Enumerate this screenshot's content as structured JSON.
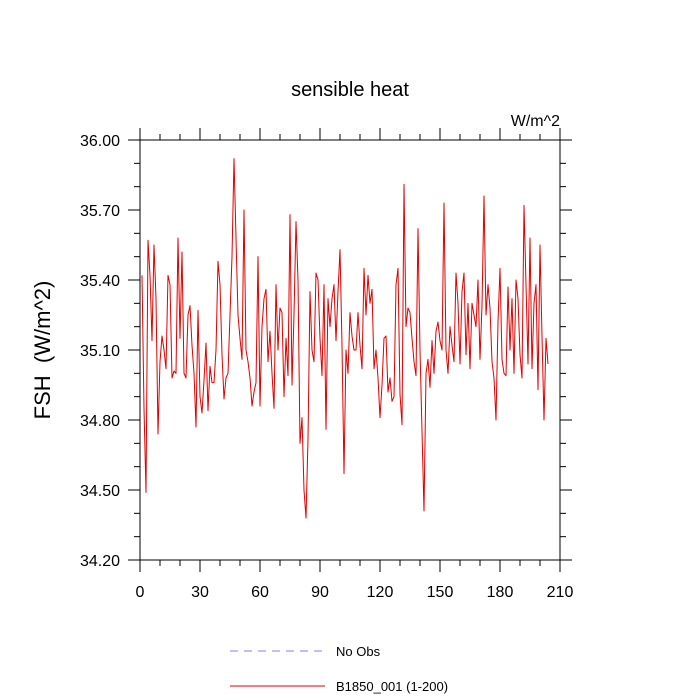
{
  "chart_data": {
    "type": "line",
    "title": "sensible heat",
    "units_label": "W/m^2",
    "ylabel": "FSH  (W/m^2)",
    "xlabel": "",
    "xlim": [
      0,
      210
    ],
    "ylim": [
      34.2,
      36.0
    ],
    "x_ticks": [
      0,
      30,
      60,
      90,
      120,
      150,
      180,
      210
    ],
    "y_ticks": [
      34.2,
      34.5,
      34.8,
      35.1,
      35.4,
      35.7,
      36.0
    ],
    "y_tick_labels": [
      "34.20",
      "34.50",
      "34.80",
      "35.10",
      "35.40",
      "35.70",
      "36.00"
    ],
    "grid": false,
    "legend_position": "bottom",
    "series": [
      {
        "name": "No Obs",
        "color": "#8080ff",
        "dash": true,
        "values": []
      },
      {
        "name": "B1850_001 (1-200)",
        "color": "#e00000",
        "dash": false,
        "x_start": 1,
        "values": [
          35.42,
          34.85,
          34.49,
          35.57,
          35.42,
          35.14,
          35.55,
          35.32,
          34.74,
          35.05,
          35.16,
          35.1,
          35.02,
          35.42,
          35.38,
          34.98,
          35.01,
          35.0,
          35.58,
          35.15,
          35.52,
          35.0,
          34.98,
          35.25,
          35.29,
          35.12,
          35.0,
          34.77,
          35.27,
          34.9,
          34.83,
          34.97,
          35.13,
          34.84,
          35.03,
          34.96,
          34.96,
          35.1,
          35.48,
          35.38,
          35.08,
          34.89,
          34.98,
          35.0,
          35.25,
          35.5,
          35.92,
          35.58,
          35.25,
          35.15,
          35.06,
          35.7,
          35.1,
          35.05,
          34.98,
          34.86,
          34.92,
          34.96,
          35.5,
          34.86,
          35.2,
          35.32,
          35.36,
          35.05,
          35.18,
          35.0,
          34.85,
          35.38,
          35.1,
          35.28,
          35.26,
          34.9,
          35.15,
          34.99,
          35.68,
          34.95,
          35.25,
          35.65,
          35.4,
          34.7,
          34.81,
          34.5,
          34.38,
          34.72,
          35.35,
          35.1,
          35.05,
          35.43,
          35.4,
          35.15,
          34.99,
          35.38,
          34.76,
          35.32,
          35.2,
          35.32,
          35.38,
          35.14,
          35.35,
          35.53,
          35.12,
          34.57,
          35.1,
          35.0,
          35.26,
          35.16,
          35.1,
          35.1,
          35.26,
          35.12,
          35.02,
          35.45,
          35.25,
          35.42,
          35.3,
          35.36,
          35.02,
          35.1,
          34.98,
          34.81,
          34.95,
          35.15,
          35.16,
          34.92,
          34.98,
          34.88,
          34.9,
          35.38,
          35.45,
          34.91,
          34.78,
          35.81,
          35.2,
          35.28,
          35.26,
          35.15,
          35.05,
          34.99,
          35.62,
          35.1,
          34.75,
          34.41,
          35.0,
          35.06,
          34.94,
          35.14,
          35.0,
          35.18,
          35.22,
          35.14,
          35.1,
          35.73,
          35.1,
          35.0,
          35.2,
          35.12,
          35.05,
          35.43,
          35.3,
          35.04,
          35.35,
          35.43,
          35.08,
          35.3,
          35.02,
          35.3,
          35.25,
          35.2,
          35.4,
          35.06,
          35.29,
          35.76,
          35.25,
          35.38,
          35.28,
          35.05,
          34.98,
          34.8,
          35.22,
          35.45,
          35.06,
          35.0,
          34.99,
          35.37,
          35.1,
          35.32,
          35.0,
          35.4,
          35.32,
          35.08,
          34.98,
          35.72,
          35.38,
          35.04,
          35.58,
          35.02,
          35.3,
          35.38,
          34.93,
          35.55,
          35.16,
          34.8,
          35.15,
          35.04
        ]
      }
    ]
  }
}
